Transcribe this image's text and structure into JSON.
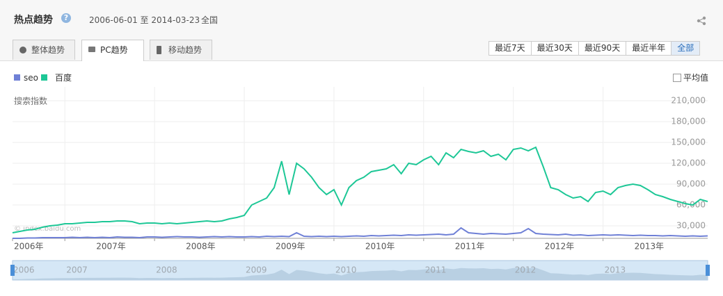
{
  "header": {
    "title": "热点趋势",
    "help_icon": "?",
    "date_range": "2006-06-01 至 2014-03-23",
    "region": "全国",
    "tabs": [
      "整体趋势",
      "PC趋势",
      "移动趋势"
    ],
    "time_buttons": [
      "最近7天",
      "最近30天",
      "最近90天",
      "最近半年",
      "全部"
    ],
    "average": "平均值"
  },
  "chart_data": {
    "type": "line",
    "y_label": "搜索指数",
    "watermark": "© index.baidu.com",
    "categories": [
      "2006年",
      null,
      null,
      null,
      null,
      null,
      null,
      "2007年",
      null,
      null,
      null,
      null,
      null,
      null,
      null,
      null,
      null,
      null,
      null,
      "2008年",
      null,
      null,
      null,
      null,
      null,
      null,
      null,
      null,
      null,
      null,
      null,
      "2009年",
      null,
      null,
      null,
      null,
      null,
      null,
      null,
      null,
      null,
      null,
      null,
      "2010年",
      null,
      null,
      null,
      null,
      null,
      null,
      null,
      null,
      null,
      null,
      null,
      "2011年",
      null,
      null,
      null,
      null,
      null,
      null,
      null,
      null,
      null,
      null,
      null,
      "2012年",
      null,
      null,
      null,
      null,
      null,
      null,
      null,
      null,
      null,
      null,
      null,
      "2013年",
      null,
      null,
      null,
      null,
      null,
      null,
      null,
      null,
      null,
      null,
      null,
      null,
      null,
      null
    ],
    "series": [
      {
        "name": "seo",
        "color": "#6f80d6",
        "values": [
          12000,
          12000,
          12500,
          12500,
          13000,
          13000,
          13000,
          13000,
          13500,
          13000,
          13500,
          13000,
          13500,
          13000,
          14000,
          13500,
          13500,
          13000,
          14000,
          14000,
          13500,
          14000,
          14500,
          14000,
          14000,
          13500,
          14000,
          14500,
          14000,
          14500,
          14000,
          14000,
          14500,
          14000,
          15000,
          14500,
          15000,
          14500,
          20000,
          15000,
          14500,
          15000,
          14500,
          15000,
          14500,
          15000,
          15500,
          15000,
          16000,
          15500,
          16000,
          16500,
          16000,
          17000,
          16500,
          17000,
          17500,
          18000,
          17000,
          18000,
          27000,
          20000,
          19000,
          18000,
          19000,
          18500,
          18000,
          19000,
          20000,
          26000,
          19000,
          18000,
          17500,
          17000,
          18000,
          16500,
          17000,
          16000,
          16500,
          17000,
          16500,
          17000,
          16500,
          16000,
          16500,
          16000,
          16000,
          15500,
          16000,
          15500,
          15000,
          15500,
          15000,
          15500
        ]
      },
      {
        "name": "百度",
        "color": "#1dc796",
        "values": [
          20000,
          22000,
          24000,
          25000,
          28000,
          30000,
          31000,
          33000,
          33000,
          34000,
          35000,
          35000,
          36000,
          36000,
          37000,
          37000,
          36000,
          33000,
          34000,
          34000,
          33000,
          34000,
          33000,
          34000,
          35000,
          36000,
          37000,
          36000,
          37000,
          40000,
          42000,
          45000,
          60000,
          65000,
          70000,
          85000,
          123000,
          75000,
          120000,
          112000,
          100000,
          85000,
          75000,
          82000,
          60000,
          85000,
          95000,
          100000,
          108000,
          110000,
          112000,
          118000,
          105000,
          120000,
          118000,
          125000,
          130000,
          118000,
          135000,
          128000,
          140000,
          137000,
          135000,
          138000,
          130000,
          133000,
          125000,
          140000,
          142000,
          138000,
          143000,
          115000,
          85000,
          82000,
          75000,
          70000,
          72000,
          65000,
          78000,
          80000,
          75000,
          85000,
          88000,
          90000,
          88000,
          82000,
          75000,
          72000,
          68000,
          65000,
          62000,
          60000,
          68000,
          65000
        ]
      }
    ],
    "ylim": [
      12000,
      220000
    ],
    "yticks": [
      {
        "value": 30000,
        "label": "30,000"
      },
      {
        "value": 60000,
        "label": "60,000"
      },
      {
        "value": 90000,
        "label": "90,000"
      },
      {
        "value": 120000,
        "label": "120,000"
      },
      {
        "value": 150000,
        "label": "150,000"
      },
      {
        "value": 180000,
        "label": "180,000"
      },
      {
        "value": 210000,
        "label": "210,000"
      }
    ],
    "grid": true,
    "navigator_labels": [
      "2006",
      "2007",
      "2008",
      "2009",
      "2010",
      "2011",
      "2012",
      "2013"
    ]
  }
}
